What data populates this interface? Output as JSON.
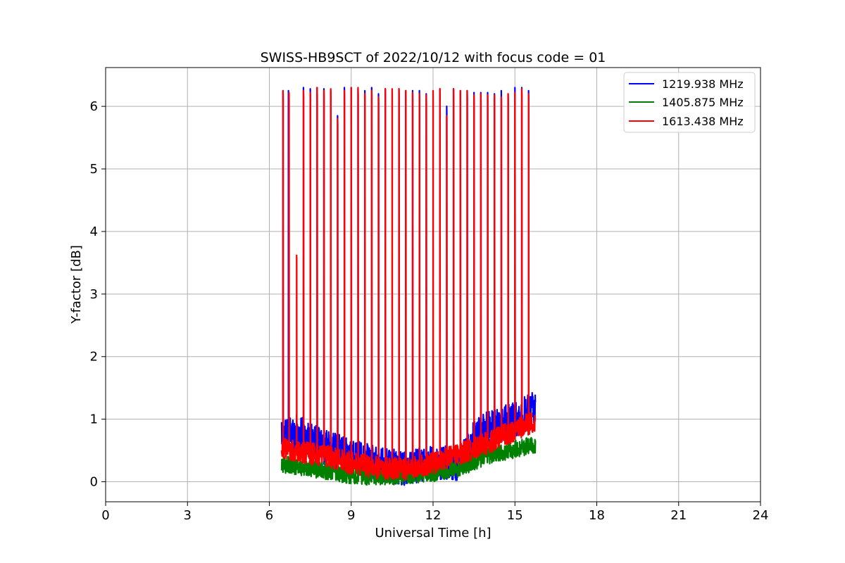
{
  "chart_data": {
    "type": "line",
    "title": "SWISS-HB9SCT of 2022/10/12 with focus code = 01",
    "xlabel": "Universal Time [h]",
    "ylabel": "Y-factor [dB]",
    "xlim": [
      0,
      24
    ],
    "ylim": [
      -0.32,
      6.62
    ],
    "x_ticks": [
      0,
      3,
      6,
      9,
      12,
      15,
      18,
      21,
      24
    ],
    "y_ticks": [
      0,
      1,
      2,
      3,
      4,
      5,
      6
    ],
    "x_tick_labels": [
      "0",
      "3",
      "6",
      "9",
      "12",
      "15",
      "18",
      "21",
      "24"
    ],
    "y_tick_labels": [
      "0",
      "1",
      "2",
      "3",
      "4",
      "5",
      "6"
    ],
    "grid": true,
    "legend_position": "top-right",
    "x_range_data": [
      6.45,
      15.75
    ],
    "series": [
      {
        "name": "1219.938 MHz",
        "color": "#0000ff",
        "baseline": [
          [
            6.45,
            0.75
          ],
          [
            7.0,
            0.8
          ],
          [
            8.0,
            0.55
          ],
          [
            9.0,
            0.42
          ],
          [
            10.0,
            0.28
          ],
          [
            11.0,
            0.22
          ],
          [
            12.0,
            0.3
          ],
          [
            13.0,
            0.3
          ],
          [
            13.5,
            0.7
          ],
          [
            14.0,
            0.85
          ],
          [
            15.0,
            1.0
          ],
          [
            15.75,
            1.2
          ]
        ],
        "noise": 0.28,
        "spikes": [
          [
            6.5,
            6.25
          ],
          [
            6.7,
            6.25
          ],
          [
            7.25,
            6.3
          ],
          [
            7.5,
            6.28
          ],
          [
            7.75,
            6.3
          ],
          [
            8.0,
            6.28
          ],
          [
            8.25,
            6.25
          ],
          [
            8.5,
            5.85
          ],
          [
            8.75,
            6.3
          ],
          [
            9.0,
            6.3
          ],
          [
            9.25,
            6.28
          ],
          [
            9.5,
            6.25
          ],
          [
            9.75,
            6.3
          ],
          [
            10.0,
            6.2
          ],
          [
            10.25,
            6.28
          ],
          [
            10.75,
            6.28
          ],
          [
            11.0,
            6.25
          ],
          [
            11.25,
            6.25
          ],
          [
            11.5,
            6.25
          ],
          [
            11.75,
            6.2
          ],
          [
            12.25,
            6.28
          ],
          [
            12.5,
            6.0
          ],
          [
            12.75,
            6.28
          ],
          [
            13.0,
            6.25
          ],
          [
            13.25,
            6.25
          ],
          [
            13.5,
            6.22
          ],
          [
            13.75,
            6.22
          ],
          [
            14.0,
            6.22
          ],
          [
            14.25,
            6.2
          ],
          [
            14.5,
            6.25
          ],
          [
            14.75,
            6.2
          ],
          [
            15.0,
            6.3
          ],
          [
            15.25,
            6.3
          ],
          [
            15.5,
            6.25
          ]
        ]
      },
      {
        "name": "1405.875 MHz",
        "color": "#008000",
        "baseline": [
          [
            6.45,
            0.28
          ],
          [
            7.0,
            0.25
          ],
          [
            8.0,
            0.18
          ],
          [
            9.0,
            0.1
          ],
          [
            10.0,
            0.08
          ],
          [
            11.0,
            0.1
          ],
          [
            12.0,
            0.14
          ],
          [
            13.0,
            0.22
          ],
          [
            14.0,
            0.42
          ],
          [
            15.0,
            0.52
          ],
          [
            15.75,
            0.6
          ]
        ],
        "noise": 0.14,
        "spikes": []
      },
      {
        "name": "1613.438 MHz",
        "color": "#ff0000",
        "baseline": [
          [
            6.45,
            0.52
          ],
          [
            7.0,
            0.48
          ],
          [
            8.0,
            0.42
          ],
          [
            9.0,
            0.3
          ],
          [
            10.0,
            0.22
          ],
          [
            11.0,
            0.2
          ],
          [
            12.0,
            0.3
          ],
          [
            13.0,
            0.45
          ],
          [
            14.0,
            0.62
          ],
          [
            15.0,
            0.82
          ],
          [
            15.75,
            0.98
          ]
        ],
        "noise": 0.18,
        "spikes": [
          [
            6.5,
            6.25
          ],
          [
            6.72,
            6.22
          ],
          [
            7.0,
            3.62
          ],
          [
            7.25,
            6.25
          ],
          [
            7.5,
            6.22
          ],
          [
            7.75,
            6.3
          ],
          [
            8.0,
            6.25
          ],
          [
            8.25,
            6.28
          ],
          [
            8.5,
            5.8
          ],
          [
            8.75,
            6.25
          ],
          [
            9.0,
            6.3
          ],
          [
            9.25,
            6.3
          ],
          [
            9.5,
            6.2
          ],
          [
            9.75,
            6.25
          ],
          [
            10.0,
            6.15
          ],
          [
            10.25,
            6.28
          ],
          [
            10.5,
            6.28
          ],
          [
            10.75,
            6.28
          ],
          [
            11.0,
            6.25
          ],
          [
            11.25,
            6.22
          ],
          [
            11.5,
            6.2
          ],
          [
            11.75,
            6.18
          ],
          [
            12.0,
            6.25
          ],
          [
            12.25,
            6.28
          ],
          [
            12.5,
            5.85
          ],
          [
            12.75,
            6.28
          ],
          [
            13.0,
            6.25
          ],
          [
            13.25,
            6.25
          ],
          [
            13.5,
            6.18
          ],
          [
            13.75,
            6.2
          ],
          [
            14.0,
            6.18
          ],
          [
            14.25,
            6.18
          ],
          [
            14.5,
            6.15
          ],
          [
            14.75,
            6.2
          ],
          [
            15.0,
            6.22
          ],
          [
            15.25,
            6.28
          ],
          [
            15.5,
            6.2
          ]
        ]
      }
    ]
  }
}
